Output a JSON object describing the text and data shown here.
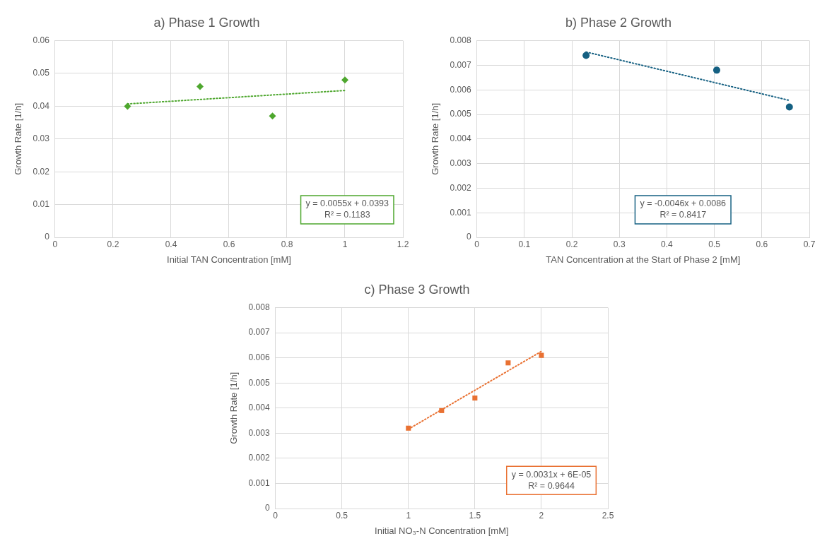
{
  "chart_data": [
    {
      "type": "scatter",
      "title": "a) Phase 1 Growth",
      "xlabel": "Initial TAN Concentration [mM]",
      "ylabel": "Growth Rate [1/h]",
      "xlim": [
        0,
        1.2
      ],
      "xticks": [
        0,
        0.2,
        0.4,
        0.6,
        0.8,
        1,
        1.2
      ],
      "ylim": [
        0,
        0.06
      ],
      "yticks": [
        0,
        0.01,
        0.02,
        0.03,
        0.04,
        0.05,
        0.06
      ],
      "grid": true,
      "annotations": [
        "y = 0.0055x + 0.0393",
        "R² = 0.1183"
      ],
      "series": [
        {
          "type": "scatter",
          "color": "#4ea72e",
          "marker": "diamond",
          "x": [
            0.25,
            0.5,
            0.75,
            1
          ],
          "values": [
            0.04,
            0.046,
            0.037,
            0.048
          ]
        },
        {
          "type": "line",
          "color": "#4ea72e",
          "marker": "none",
          "line_style": "dotted",
          "x": [
            0.25,
            1
          ],
          "values": [
            0.0407,
            0.0448
          ]
        }
      ]
    },
    {
      "type": "scatter",
      "title": "b) Phase 2 Growth",
      "xlabel": "TAN Concentration at the Start of Phase 2 [mM]",
      "ylabel": "Growth Rate [1/h]",
      "xlim": [
        0,
        0.7
      ],
      "xticks": [
        0,
        0.1,
        0.2,
        0.3,
        0.4,
        0.5,
        0.6,
        0.7
      ],
      "ylim": [
        0,
        0.008
      ],
      "yticks": [
        0,
        0.001,
        0.002,
        0.003,
        0.004,
        0.005,
        0.006,
        0.007,
        0.008
      ],
      "grid": true,
      "annotations": [
        "y = -0.0046x + 0.0086",
        "R² = 0.8417"
      ],
      "series": [
        {
          "type": "scatter",
          "color": "#156082",
          "marker": "circle",
          "x": [
            0.23,
            0.505,
            0.658
          ],
          "values": [
            0.0074,
            0.0068,
            0.0053
          ]
        },
        {
          "type": "line",
          "color": "#156082",
          "marker": "none",
          "line_style": "dotted",
          "x": [
            0.23,
            0.658
          ],
          "values": [
            0.00754,
            0.00557
          ]
        }
      ]
    },
    {
      "type": "scatter",
      "title": "c) Phase 3 Growth",
      "xlabel": "Initial NO₃-N Concentration [mM]",
      "ylabel": "Growth Rate [1/h]",
      "xlim": [
        0,
        2.5
      ],
      "xticks": [
        0,
        0.5,
        1,
        1.5,
        2,
        2.5
      ],
      "ylim": [
        0,
        0.008
      ],
      "yticks": [
        0,
        0.001,
        0.002,
        0.003,
        0.004,
        0.005,
        0.006,
        0.007,
        0.008
      ],
      "grid": true,
      "annotations": [
        "y = 0.0031x + 6E-05",
        "R² = 0.9644"
      ],
      "series": [
        {
          "type": "scatter",
          "color": "#e97132",
          "marker": "square",
          "x": [
            1,
            1.25,
            1.5,
            1.75,
            2
          ],
          "values": [
            0.0032,
            0.0039,
            0.0044,
            0.0058,
            0.0061
          ]
        },
        {
          "type": "line",
          "color": "#e97132",
          "marker": "none",
          "line_style": "dotted",
          "x": [
            1,
            2
          ],
          "values": [
            0.00316,
            0.00626
          ]
        }
      ]
    }
  ]
}
